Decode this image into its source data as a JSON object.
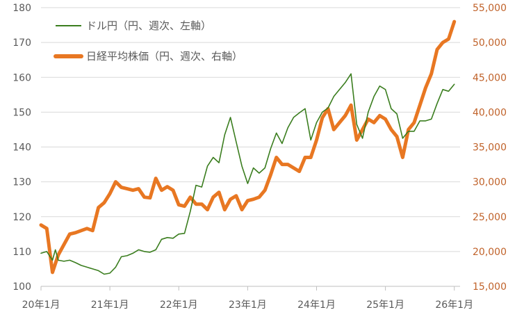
{
  "chart_data": {
    "type": "line",
    "title": "",
    "x_range": [
      "2020-01",
      "2026-02"
    ],
    "x_tick_labels": [
      "20年1月",
      "21年1月",
      "22年1月",
      "23年1月",
      "24年1月",
      "25年1月",
      "26年1月"
    ],
    "y_left": {
      "min": 100,
      "max": 180,
      "step": 10,
      "tick_labels": [
        "100",
        "110",
        "120",
        "130",
        "140",
        "150",
        "160",
        "170",
        "180"
      ]
    },
    "y_right": {
      "min": 15000,
      "max": 55000,
      "step": 5000,
      "tick_labels": [
        "15,000",
        "20,000",
        "25,000",
        "30,000",
        "35,000",
        "40,000",
        "45,000",
        "50,000",
        "55,000"
      ]
    },
    "grid": true,
    "legend_position": "top-left",
    "series": [
      {
        "name": "ドル円（円、週次、左軸）",
        "axis": "left",
        "color": "#3a7d1e",
        "points": [
          [
            "2020-01",
            109.5
          ],
          [
            "2020-02",
            110.0
          ],
          [
            "2020-03",
            107.5
          ],
          [
            "2020-03",
            110.5
          ],
          [
            "2020-04",
            107.5
          ],
          [
            "2020-05",
            107.2
          ],
          [
            "2020-06",
            107.5
          ],
          [
            "2020-07",
            106.8
          ],
          [
            "2020-08",
            106.0
          ],
          [
            "2020-09",
            105.5
          ],
          [
            "2020-10",
            105.0
          ],
          [
            "2020-11",
            104.5
          ],
          [
            "2020-12",
            103.5
          ],
          [
            "2021-01",
            103.8
          ],
          [
            "2021-02",
            105.5
          ],
          [
            "2021-03",
            108.5
          ],
          [
            "2021-04",
            108.8
          ],
          [
            "2021-05",
            109.5
          ],
          [
            "2021-06",
            110.5
          ],
          [
            "2021-07",
            110.0
          ],
          [
            "2021-08",
            109.8
          ],
          [
            "2021-09",
            110.5
          ],
          [
            "2021-10",
            113.5
          ],
          [
            "2021-11",
            114.0
          ],
          [
            "2021-12",
            113.8
          ],
          [
            "2022-01",
            115.0
          ],
          [
            "2022-02",
            115.2
          ],
          [
            "2022-03",
            121.5
          ],
          [
            "2022-04",
            129.0
          ],
          [
            "2022-05",
            128.5
          ],
          [
            "2022-06",
            134.5
          ],
          [
            "2022-07",
            137.0
          ],
          [
            "2022-08",
            135.5
          ],
          [
            "2022-09",
            143.5
          ],
          [
            "2022-10",
            148.5
          ],
          [
            "2022-11",
            141.5
          ],
          [
            "2022-12",
            134.5
          ],
          [
            "2023-01",
            129.5
          ],
          [
            "2023-02",
            134.0
          ],
          [
            "2023-03",
            132.5
          ],
          [
            "2023-04",
            134.0
          ],
          [
            "2023-05",
            139.5
          ],
          [
            "2023-06",
            144.0
          ],
          [
            "2023-07",
            141.0
          ],
          [
            "2023-08",
            145.5
          ],
          [
            "2023-09",
            148.5
          ],
          [
            "2023-10",
            149.8
          ],
          [
            "2023-11",
            151.0
          ],
          [
            "2023-12",
            142.0
          ],
          [
            "2024-01",
            147.0
          ],
          [
            "2024-02",
            150.0
          ],
          [
            "2024-03",
            151.2
          ],
          [
            "2024-04",
            154.5
          ],
          [
            "2024-05",
            156.5
          ],
          [
            "2024-06",
            158.5
          ],
          [
            "2024-07",
            161.0
          ],
          [
            "2024-08",
            146.5
          ],
          [
            "2024-09",
            142.5
          ],
          [
            "2024-10",
            150.0
          ],
          [
            "2024-11",
            154.5
          ],
          [
            "2024-12",
            157.5
          ],
          [
            "2025-01",
            156.5
          ],
          [
            "2025-02",
            151.0
          ],
          [
            "2025-03",
            149.5
          ],
          [
            "2025-04",
            142.5
          ],
          [
            "2025-05",
            144.5
          ],
          [
            "2025-06",
            144.5
          ],
          [
            "2025-07",
            147.5
          ],
          [
            "2025-08",
            147.5
          ],
          [
            "2025-09",
            148.0
          ],
          [
            "2025-10",
            152.5
          ],
          [
            "2025-11",
            156.5
          ],
          [
            "2025-12",
            156.0
          ],
          [
            "2026-01",
            158.0
          ]
        ]
      },
      {
        "name": "日経平均株価（円、週次、右軸）",
        "axis": "right",
        "color": "#e87722",
        "points": [
          [
            "2020-01",
            23800
          ],
          [
            "2020-02",
            23300
          ],
          [
            "2020-03",
            17000
          ],
          [
            "2020-04",
            19500
          ],
          [
            "2020-05",
            21000
          ],
          [
            "2020-06",
            22500
          ],
          [
            "2020-07",
            22700
          ],
          [
            "2020-08",
            23000
          ],
          [
            "2020-09",
            23300
          ],
          [
            "2020-10",
            23000
          ],
          [
            "2020-11",
            26300
          ],
          [
            "2020-12",
            27000
          ],
          [
            "2021-01",
            28300
          ],
          [
            "2021-02",
            30000
          ],
          [
            "2021-03",
            29200
          ],
          [
            "2021-04",
            29000
          ],
          [
            "2021-05",
            28800
          ],
          [
            "2021-06",
            29000
          ],
          [
            "2021-07",
            27800
          ],
          [
            "2021-08",
            27700
          ],
          [
            "2021-09",
            30500
          ],
          [
            "2021-10",
            28800
          ],
          [
            "2021-11",
            29300
          ],
          [
            "2021-12",
            28800
          ],
          [
            "2022-01",
            26700
          ],
          [
            "2022-02",
            26500
          ],
          [
            "2022-03",
            27800
          ],
          [
            "2022-04",
            26800
          ],
          [
            "2022-05",
            26800
          ],
          [
            "2022-06",
            26000
          ],
          [
            "2022-07",
            27800
          ],
          [
            "2022-08",
            28500
          ],
          [
            "2022-09",
            26000
          ],
          [
            "2022-10",
            27500
          ],
          [
            "2022-11",
            28000
          ],
          [
            "2022-12",
            26000
          ],
          [
            "2023-01",
            27300
          ],
          [
            "2023-02",
            27500
          ],
          [
            "2023-03",
            27800
          ],
          [
            "2023-04",
            28800
          ],
          [
            "2023-05",
            31000
          ],
          [
            "2023-06",
            33500
          ],
          [
            "2023-07",
            32500
          ],
          [
            "2023-08",
            32500
          ],
          [
            "2023-09",
            32000
          ],
          [
            "2023-10",
            31500
          ],
          [
            "2023-11",
            33500
          ],
          [
            "2023-12",
            33500
          ],
          [
            "2024-01",
            36000
          ],
          [
            "2024-02",
            39200
          ],
          [
            "2024-03",
            40500
          ],
          [
            "2024-04",
            37500
          ],
          [
            "2024-05",
            38500
          ],
          [
            "2024-06",
            39500
          ],
          [
            "2024-07",
            41000
          ],
          [
            "2024-08",
            36000
          ],
          [
            "2024-09",
            37500
          ],
          [
            "2024-10",
            39000
          ],
          [
            "2024-11",
            38500
          ],
          [
            "2024-12",
            39500
          ],
          [
            "2025-01",
            39000
          ],
          [
            "2025-02",
            37500
          ],
          [
            "2025-03",
            36500
          ],
          [
            "2025-04",
            33500
          ],
          [
            "2025-05",
            37500
          ],
          [
            "2025-06",
            38500
          ],
          [
            "2025-07",
            41000
          ],
          [
            "2025-08",
            43500
          ],
          [
            "2025-09",
            45500
          ],
          [
            "2025-10",
            49000
          ],
          [
            "2025-11",
            50000
          ],
          [
            "2025-12",
            50500
          ],
          [
            "2026-01",
            53000
          ]
        ]
      }
    ]
  }
}
